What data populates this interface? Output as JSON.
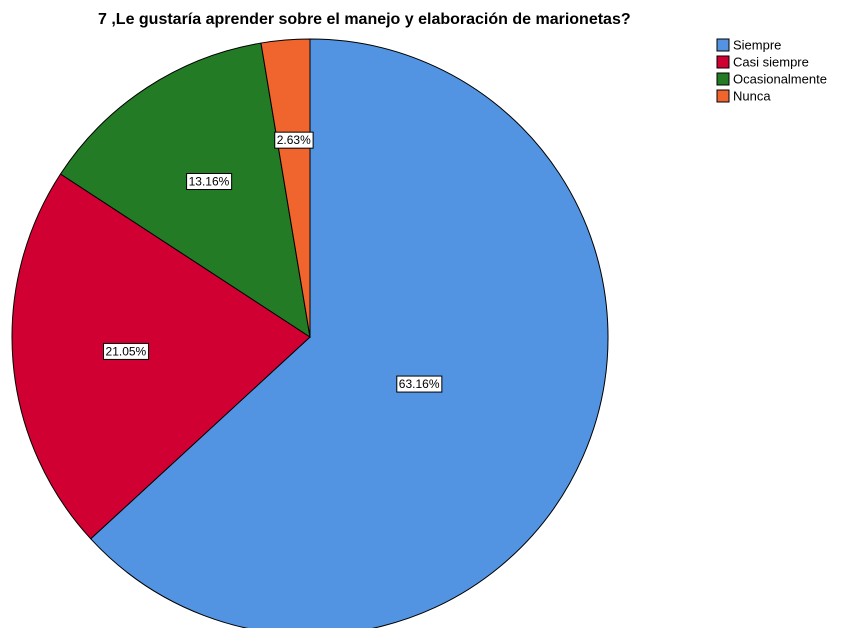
{
  "chart_data": {
    "type": "pie",
    "title": "7 ,Le gustaría aprender sobre el manejo y elaboración de marionetas?",
    "categories": [
      "Siempre",
      "Casi siempre",
      "Ocasionalmente",
      "Nunca"
    ],
    "values": [
      63.16,
      21.05,
      13.16,
      2.63
    ],
    "value_labels": [
      "63.16%",
      "21.05%",
      "13.16%",
      "2.63%"
    ],
    "colors": [
      "#5294e2",
      "#d10033",
      "#237b25",
      "#f0642d"
    ],
    "legend": "upper right"
  }
}
